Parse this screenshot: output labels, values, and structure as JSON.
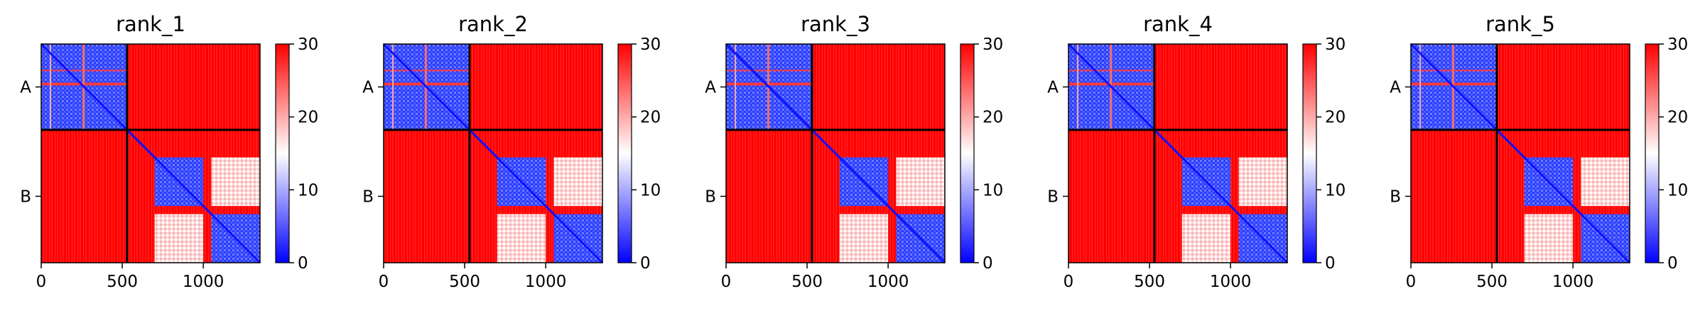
{
  "chart_data": {
    "type": "heatmap",
    "description_of_values": "Predicted aligned error (PAE) matrices, residue vs residue, color scale 0-30",
    "chains": [
      {
        "label": "A",
        "start": 0,
        "end": 530
      },
      {
        "label": "B",
        "start": 530,
        "end": 1350
      }
    ],
    "x_range": [
      0,
      1350
    ],
    "x_ticks": [
      "0",
      "500",
      "1000"
    ],
    "y_ticks": [
      "A",
      "B"
    ],
    "colorbar": {
      "min": 0,
      "max": 30,
      "ticks": [
        "0",
        "10",
        "20",
        "30"
      ],
      "colors": {
        "low": "#0000ff",
        "mid": "#ffffff",
        "high": "#ff0000"
      }
    },
    "panels": [
      {
        "title": "rank_1"
      },
      {
        "title": "rank_2"
      },
      {
        "title": "rank_3"
      },
      {
        "title": "rank_4"
      },
      {
        "title": "rank_5"
      }
    ],
    "block_summary": [
      {
        "region": "A-A",
        "typical_value": 8,
        "note": "blue with diagonal and scattered red streaks"
      },
      {
        "region": "A-B",
        "typical_value": 30
      },
      {
        "region": "B-A",
        "typical_value": 30
      },
      {
        "region": "B-B",
        "typical_value": 12,
        "note": "two blue sub-domains (~700-1000, ~1050-1350) with pale cross regions"
      }
    ]
  }
}
